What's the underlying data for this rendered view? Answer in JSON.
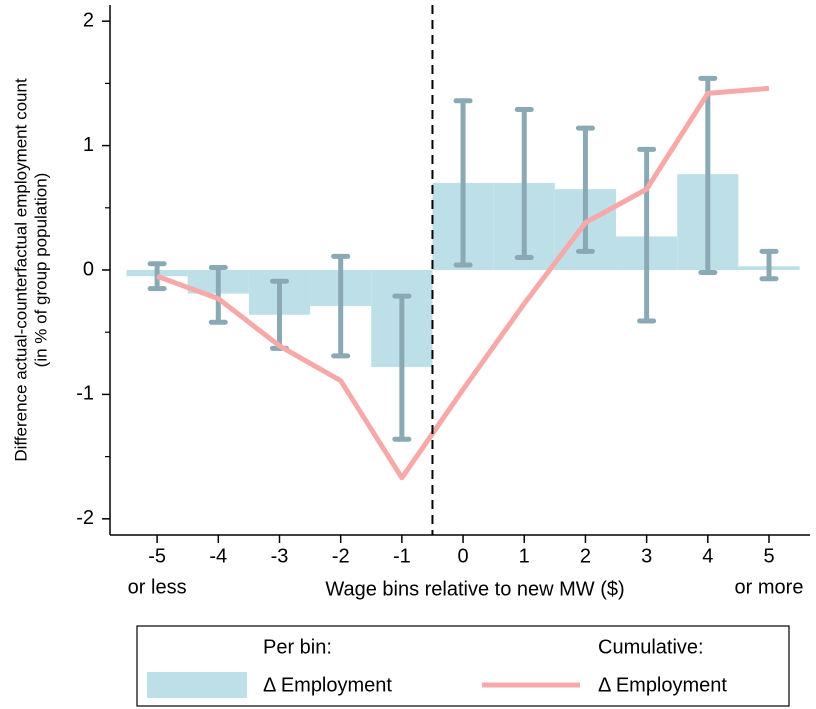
{
  "chart_data": {
    "type": "bar",
    "ylabel": [
      "Difference actual-counterfactual employment count",
      "(in % of group population)"
    ],
    "xlabel": "Wage bins relative to new MW ($)",
    "x": [
      -5,
      -4,
      -3,
      -2,
      -1,
      0,
      1,
      2,
      3,
      4,
      5
    ],
    "x_end_labels": [
      "or less",
      "or more"
    ],
    "xlim": [
      -5.77,
      5.67
    ],
    "xticks": [
      -5,
      -4,
      -3,
      -2,
      -1,
      0,
      1,
      2,
      3,
      4,
      5
    ],
    "ylim": [
      -2.13,
      2.13
    ],
    "yticks": [
      -2,
      -1,
      0,
      1,
      2
    ],
    "yminorticks": [
      -1.5,
      -0.5,
      0.5,
      1.5
    ],
    "vline": -0.5,
    "series": [
      {
        "type": "bar",
        "legend_header": "Per bin:",
        "name": "Δ Employment",
        "color": "#bde0e8",
        "error_color": "#8aa9b4",
        "values": [
          -0.05,
          -0.19,
          -0.36,
          -0.29,
          -0.78,
          0.7,
          0.7,
          0.65,
          0.27,
          0.77,
          0.03
        ],
        "error_low": [
          -0.15,
          -0.42,
          -0.63,
          -0.69,
          -1.36,
          0.04,
          0.1,
          0.15,
          -0.41,
          -0.02,
          -0.07
        ],
        "error_high": [
          0.05,
          0.02,
          -0.09,
          0.11,
          -0.21,
          1.36,
          1.29,
          1.14,
          0.97,
          1.54,
          0.15
        ]
      },
      {
        "type": "line",
        "legend_header": "Cumulative:",
        "name": "Δ Employment",
        "color": "#f7a8a8",
        "values": [
          -0.05,
          -0.23,
          -0.61,
          -0.89,
          -1.67,
          -0.96,
          -0.27,
          0.38,
          0.65,
          1.42,
          1.46
        ]
      }
    ]
  }
}
